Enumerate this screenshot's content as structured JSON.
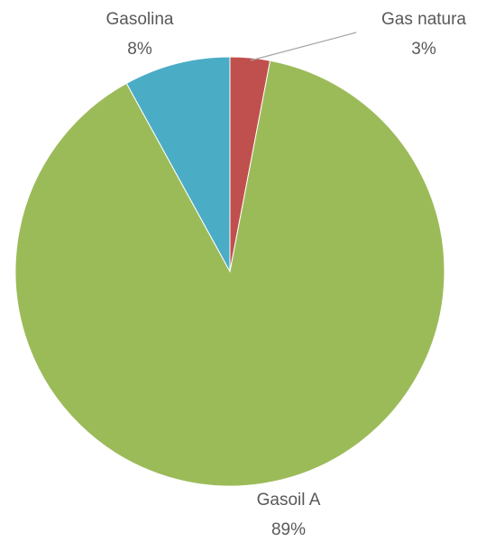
{
  "chart_data": {
    "type": "pie",
    "categories": [
      "Gas natura",
      "Gasoil A",
      "Gasolina"
    ],
    "values": [
      3,
      89,
      8
    ],
    "value_labels": [
      "3%",
      "89%",
      "8%"
    ],
    "colors": [
      "#c0504d",
      "#9bbb59",
      "#4bacc6"
    ]
  }
}
